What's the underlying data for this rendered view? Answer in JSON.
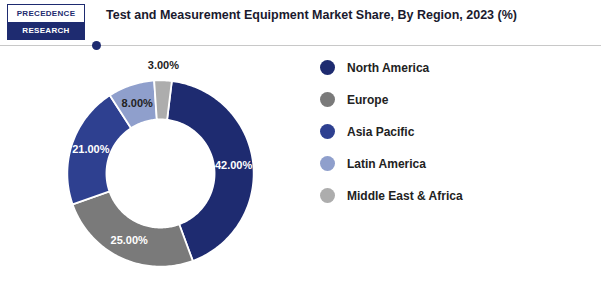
{
  "chart_data": {
    "type": "donut",
    "title": "Test and Measurement Equipment Market Share, By Region, 2023 (%)",
    "annotations": [
      "PRECEDENCE",
      "RESEARCH"
    ],
    "categories": [
      "North America",
      "Europe",
      "Asia Pacific",
      "Latin America",
      "Middle East & Africa"
    ],
    "values": [
      42,
      25,
      21,
      8,
      3
    ],
    "value_labels": [
      "42.00%",
      "25.00%",
      "21.00%",
      "8.00%",
      "3.00%"
    ],
    "data_labels": true,
    "colors": [
      "#1e2b70",
      "#7a7a7a",
      "#2e4090",
      "#8f9fcc",
      "#adadad"
    ],
    "legend": "right"
  }
}
